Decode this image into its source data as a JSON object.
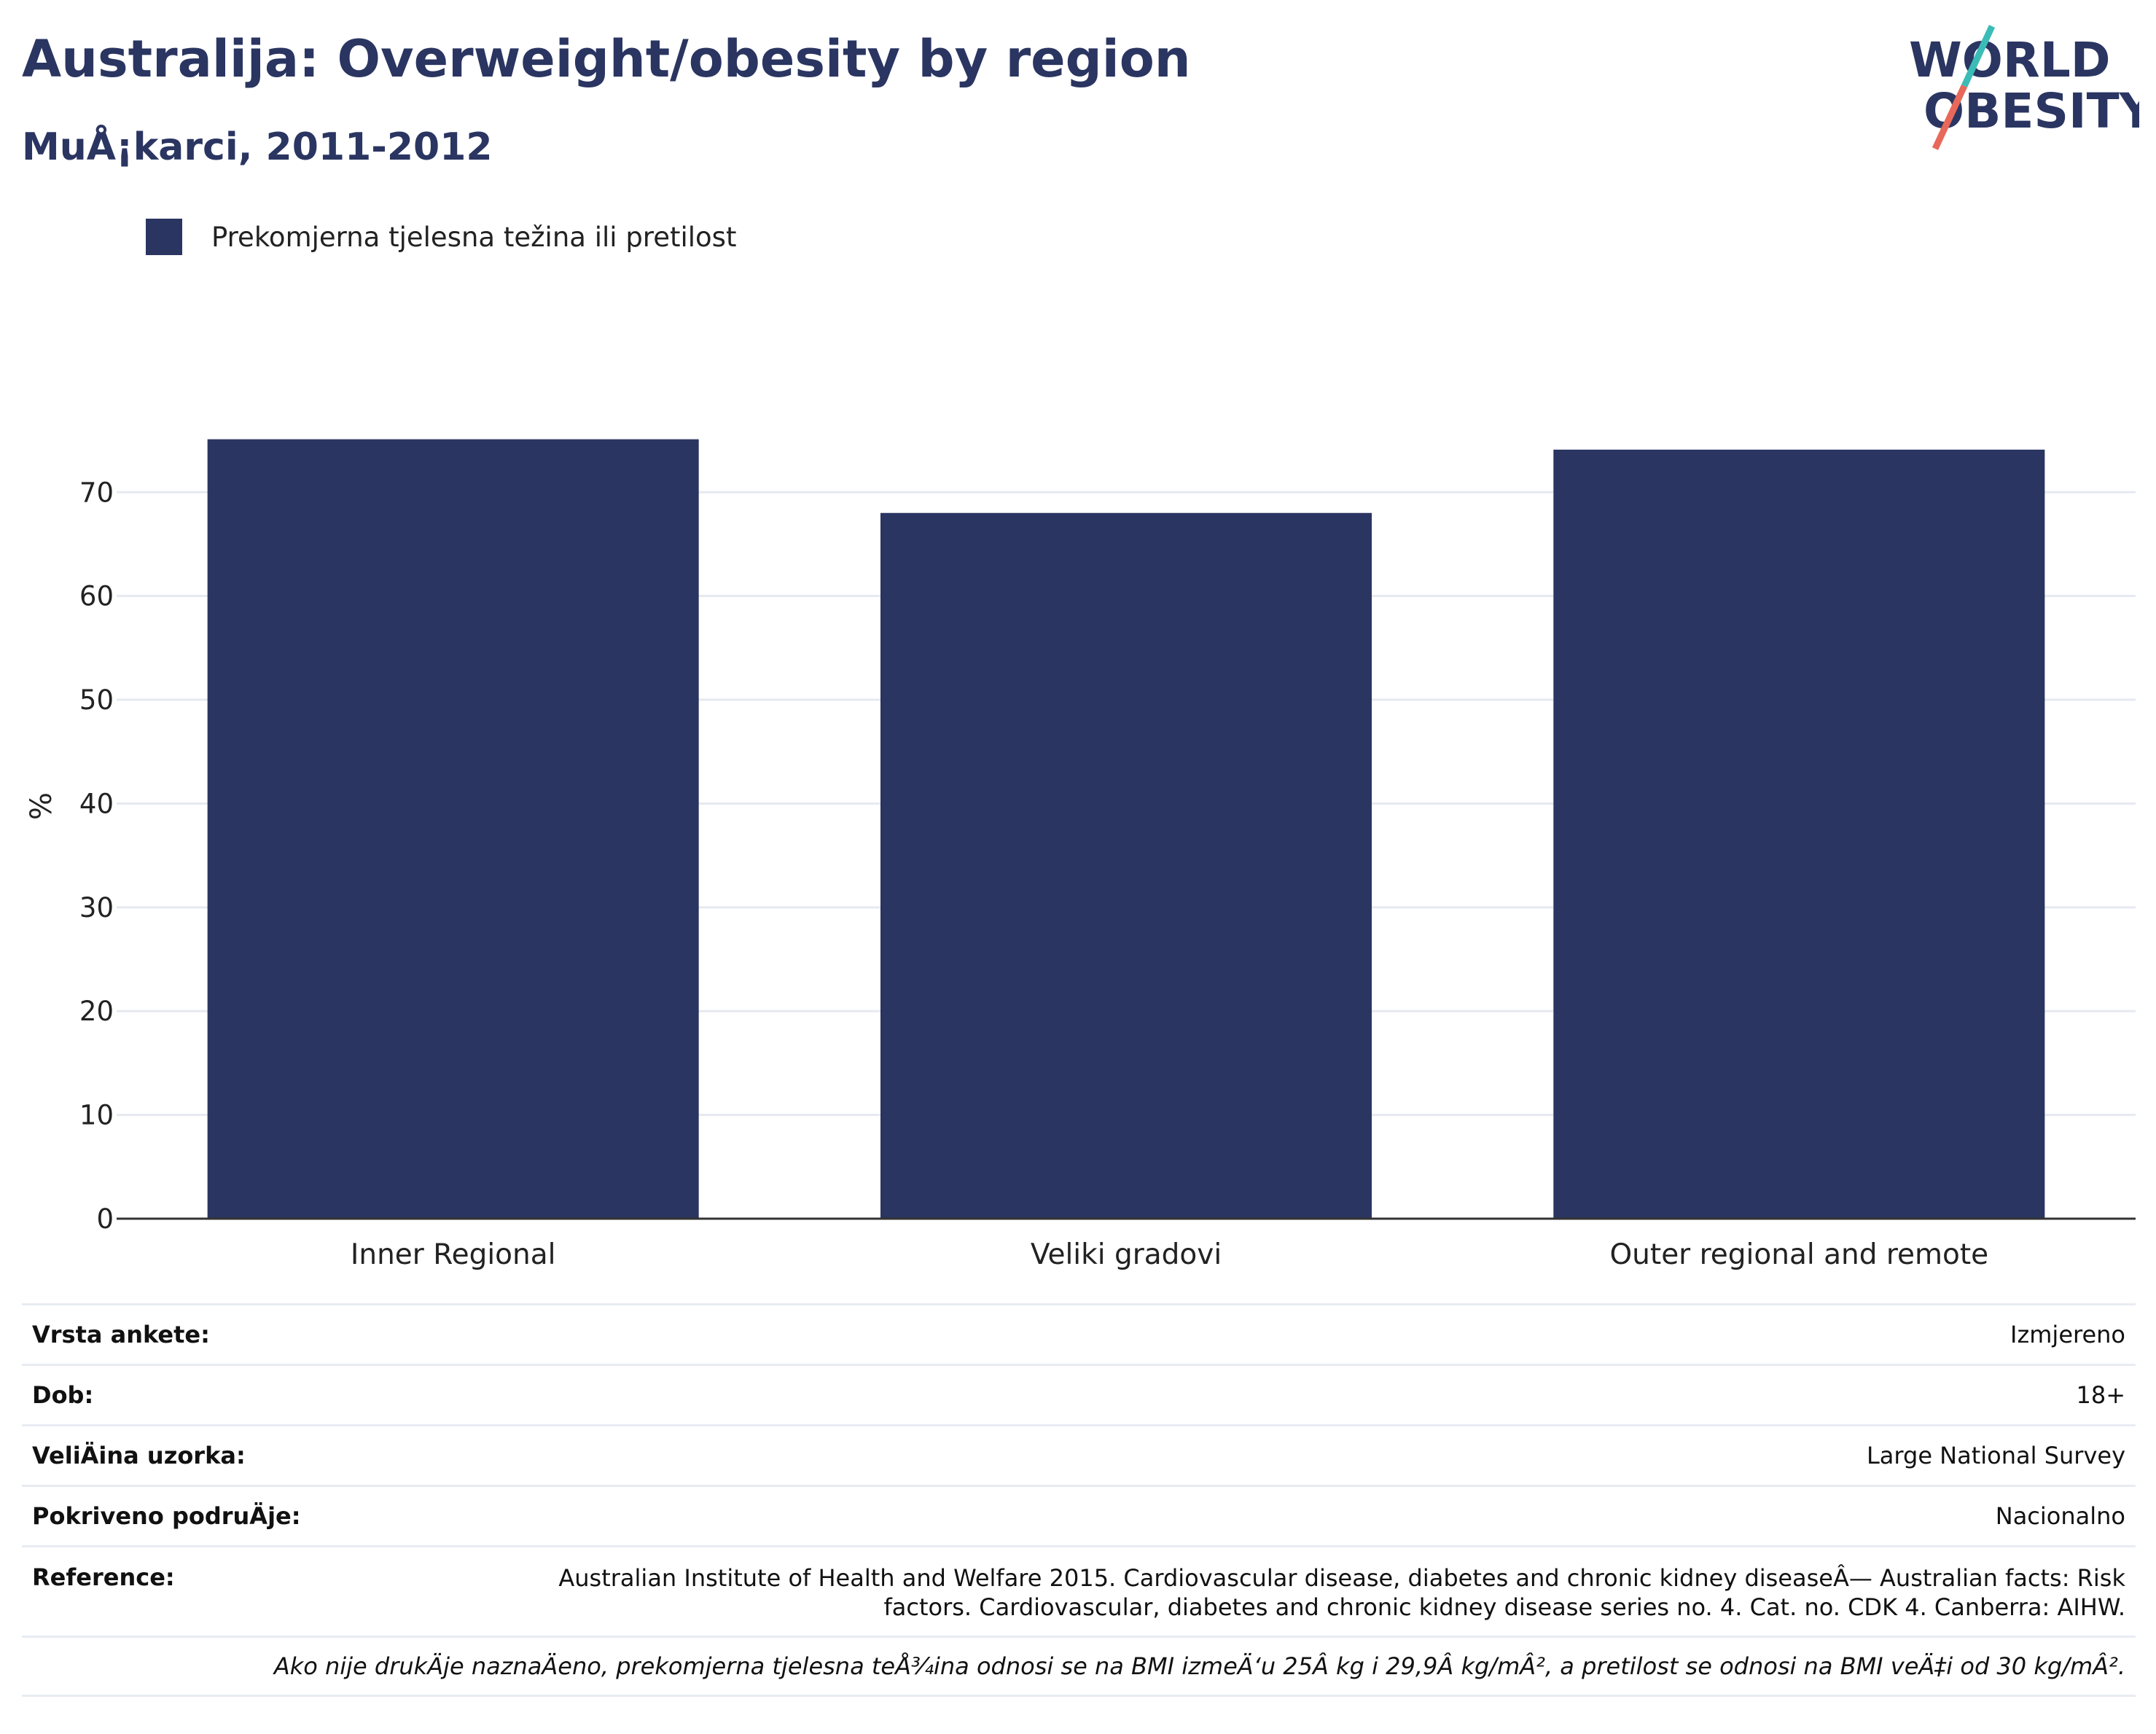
{
  "header": {
    "title": "Australija: Overweight/obesity by region",
    "subtitle": "MuÅ¡karci, 2011-2012"
  },
  "logo": {
    "line1": "WORLD",
    "line2": "OBESITY",
    "colors": {
      "text": "#2a3561",
      "slash_top": "#3bbcb6",
      "slash_bottom": "#e8685a"
    }
  },
  "colors": {
    "bar": "#2a3561",
    "grid": "#e6e9ef",
    "axis": "#333333",
    "text": "#222222"
  },
  "chart_data": {
    "type": "bar",
    "categories": [
      "Inner Regional",
      "Veliki gradovi",
      "Outer regional and remote"
    ],
    "series": [
      {
        "name": "Prekomjerna tjelesna težina ili pretilost",
        "values": [
          75.1,
          68.0,
          74.1
        ]
      }
    ],
    "ylabel": "%",
    "ylim": [
      0,
      79.5
    ],
    "yticks": [
      0,
      10,
      20,
      30,
      40,
      50,
      60,
      70
    ],
    "grid": true,
    "legend_position": "top-left"
  },
  "metadata": {
    "rows": [
      {
        "label": "Vrsta ankete:",
        "value": "Izmjereno"
      },
      {
        "label": "Dob:",
        "value": "18+"
      },
      {
        "label": "VeliÄ\u001fina uzorka:",
        "value": "Large National Survey"
      },
      {
        "label": "Pokriveno podruÄ\u001fje:",
        "value": "Nacionalno"
      },
      {
        "label": "Reference:",
        "value": "Australian Institute of Health and Welfare 2015. Cardiovascular disease, diabetes and chronic kidney diseaseÂ— Australian facts: Risk factors. Cardiovascular, diabetes and chronic kidney disease series no. 4. Cat. no. CDK 4. Canberra: AIHW."
      }
    ],
    "note": "Ako nije drukÄ\u001fje naznaÄ\u001feno, prekomjerna tjelesna teÅ¾ina odnosi se na BMI izmeÄ‘u 25Â kg i 29,9Â kg/mÂ², a pretilost se odnosi na BMI veÄ‡i od 30 kg/mÂ²."
  }
}
